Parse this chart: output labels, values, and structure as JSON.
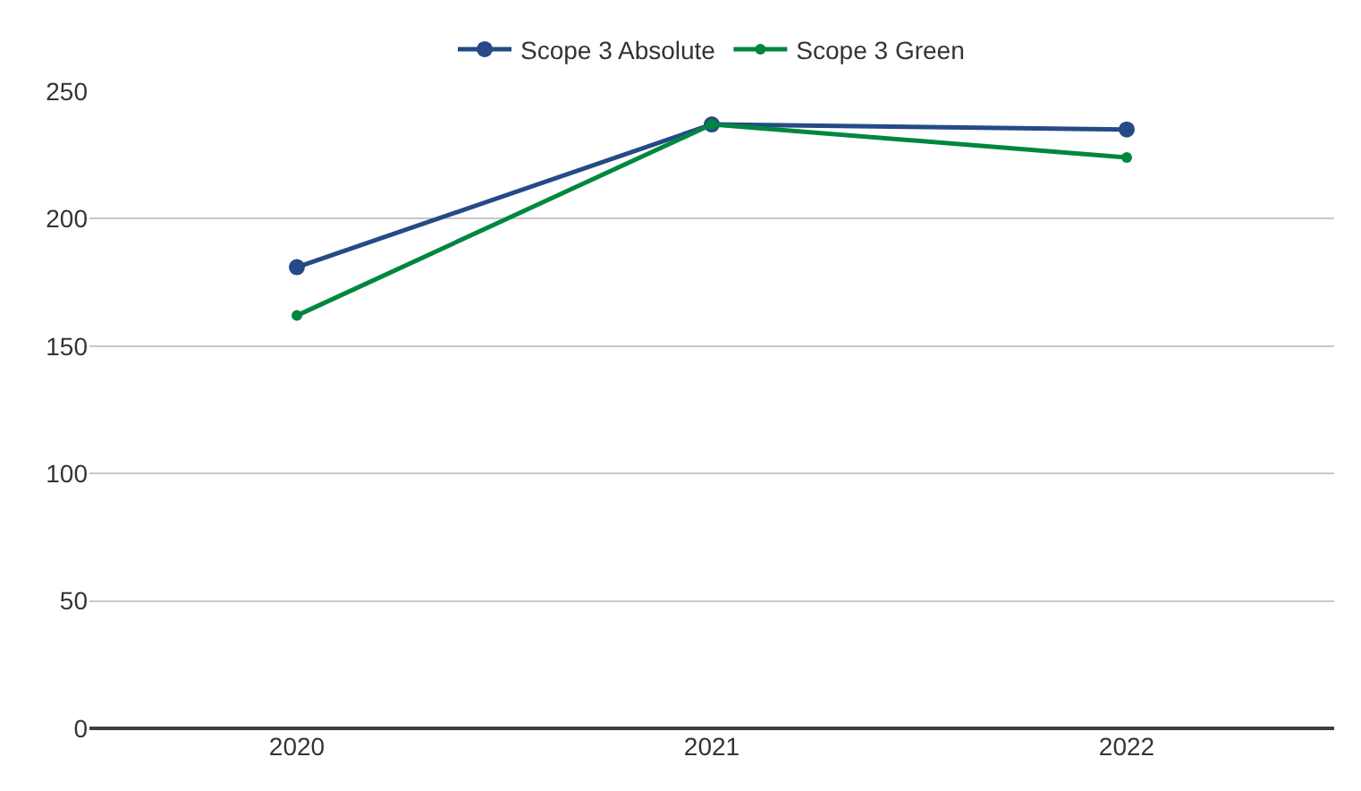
{
  "chart_data": {
    "type": "line",
    "categories": [
      "2020",
      "2021",
      "2022"
    ],
    "series": [
      {
        "name": "Scope 3 Absolute",
        "color": "#254a86",
        "values": [
          181,
          237,
          235
        ]
      },
      {
        "name": "Scope 3 Green",
        "color": "#00873f",
        "values": [
          162,
          237,
          224
        ]
      }
    ],
    "ylim": [
      0,
      250
    ],
    "yticks": [
      0,
      50,
      100,
      150,
      200,
      250
    ],
    "grid": "y",
    "legend": "top",
    "marker": "circle",
    "line_style": "solid"
  }
}
